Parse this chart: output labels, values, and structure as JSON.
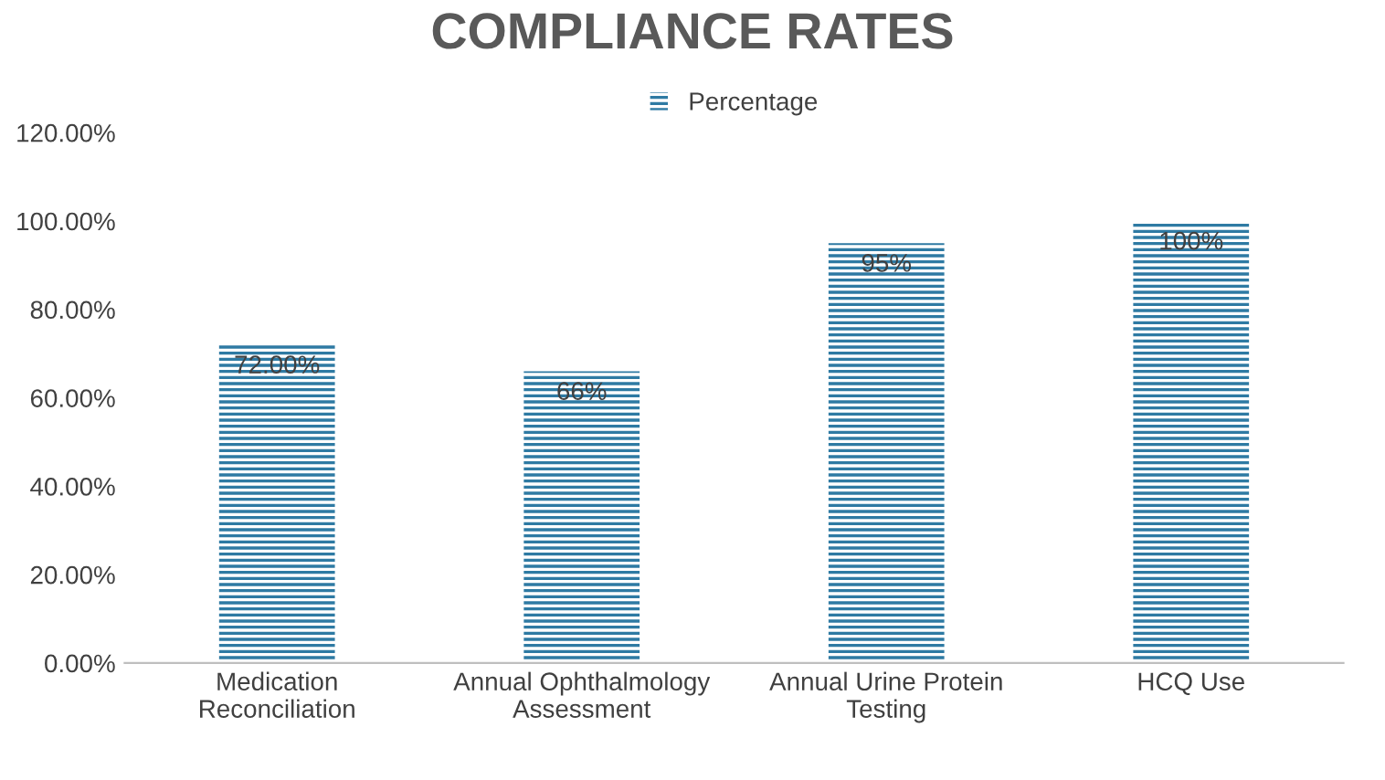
{
  "chart_data": {
    "type": "bar",
    "title": "COMPLIANCE RATES",
    "categories": [
      "Medication\nReconciliation",
      "Annual Ophthalmology\nAssessment",
      "Annual Urine Protein\nTesting",
      "HCQ Use"
    ],
    "series": [
      {
        "name": "Percentage",
        "color": "#2e7aa3",
        "values": [
          72,
          66,
          95,
          100
        ],
        "value_labels": [
          "72.00%",
          "66%",
          "95%",
          "100%"
        ]
      }
    ],
    "ylim": [
      0,
      120
    ],
    "yticks": [
      {
        "value": 0,
        "label": "0.00%"
      },
      {
        "value": 20,
        "label": "20.00%"
      },
      {
        "value": 40,
        "label": "40.00%"
      },
      {
        "value": 60,
        "label": "60.00%"
      },
      {
        "value": 80,
        "label": "80.00%"
      },
      {
        "value": 100,
        "label": "100.00%"
      },
      {
        "value": 120,
        "label": "120.00%"
      }
    ],
    "grid": false,
    "legend": "top"
  }
}
